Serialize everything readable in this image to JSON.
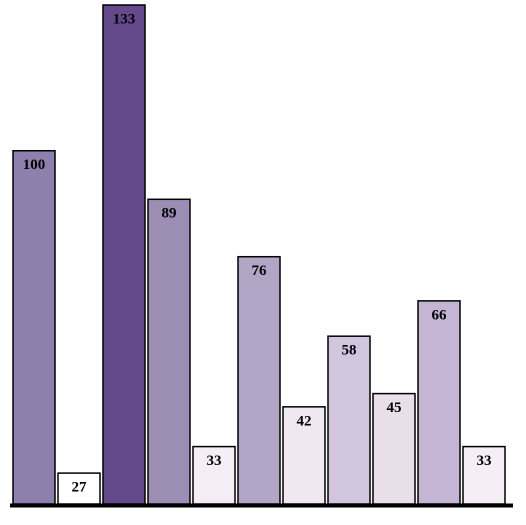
{
  "chart_data": {
    "type": "bar",
    "categories": [
      null,
      null,
      null,
      null,
      null,
      null,
      null,
      null,
      null,
      null,
      null
    ],
    "values": [
      100,
      27,
      133,
      89,
      33,
      76,
      42,
      58,
      45,
      66,
      33
    ],
    "colors": [
      "#8f7fac",
      "#ffffff",
      "#644a8a",
      "#9c8db5",
      "#f4eef4",
      "#b3a5c6",
      "#efe8f0",
      "#d1c6dd",
      "#e8dfe9",
      "#c3b5d3",
      "#f5eff5"
    ],
    "ylim": [
      20,
      133
    ]
  }
}
